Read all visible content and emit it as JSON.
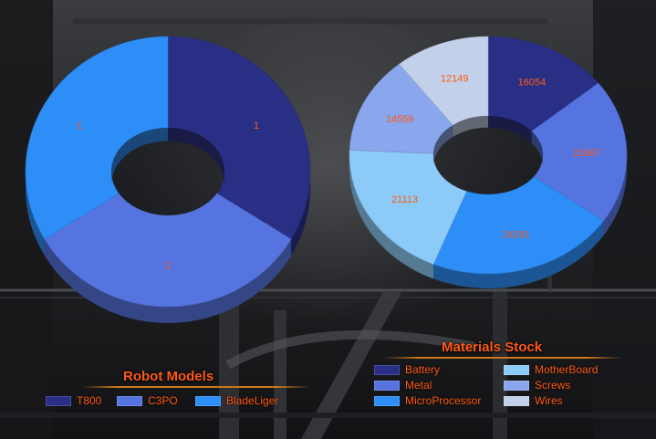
{
  "colors": {
    "navy": "#2a2f86",
    "royal": "#5674e0",
    "azure": "#2e8ef7",
    "sky": "#8ccbf7",
    "periwinkle": "#8aa6ec",
    "pale": "#c2d1e9",
    "label_text": "#ff5a14"
  },
  "chart_data": [
    {
      "type": "pie",
      "style": "donut-3d",
      "title": "Robot Models",
      "legend_position": "bottom-left",
      "slices": [
        {
          "name": "T800",
          "value": 1,
          "label": "1",
          "color": "#2a2f86"
        },
        {
          "name": "C3PO",
          "value": 1,
          "label": "1",
          "color": "#5674e0"
        },
        {
          "name": "BladeLiger",
          "value": 1,
          "label": "1",
          "color": "#2e8ef7"
        }
      ]
    },
    {
      "type": "pie",
      "style": "donut-3d",
      "title": "Materials Stock",
      "legend_position": "bottom-right",
      "slices": [
        {
          "name": "Battery",
          "value": 16054,
          "label": "16054",
          "color": "#2a2f86"
        },
        {
          "name": "Metal",
          "value": 21667,
          "label": "21667",
          "color": "#5674e0"
        },
        {
          "name": "MicroProcessor",
          "value": 24291,
          "label": "24291",
          "color": "#2e8ef7"
        },
        {
          "name": "MotherBoard",
          "value": 21113,
          "label": "21113",
          "color": "#8ccbf7"
        },
        {
          "name": "Screws",
          "value": 14559,
          "label": "14559",
          "color": "#8aa6ec"
        },
        {
          "name": "Wires",
          "value": 12149,
          "label": "12149",
          "color": "#c2d1e9"
        }
      ]
    }
  ]
}
